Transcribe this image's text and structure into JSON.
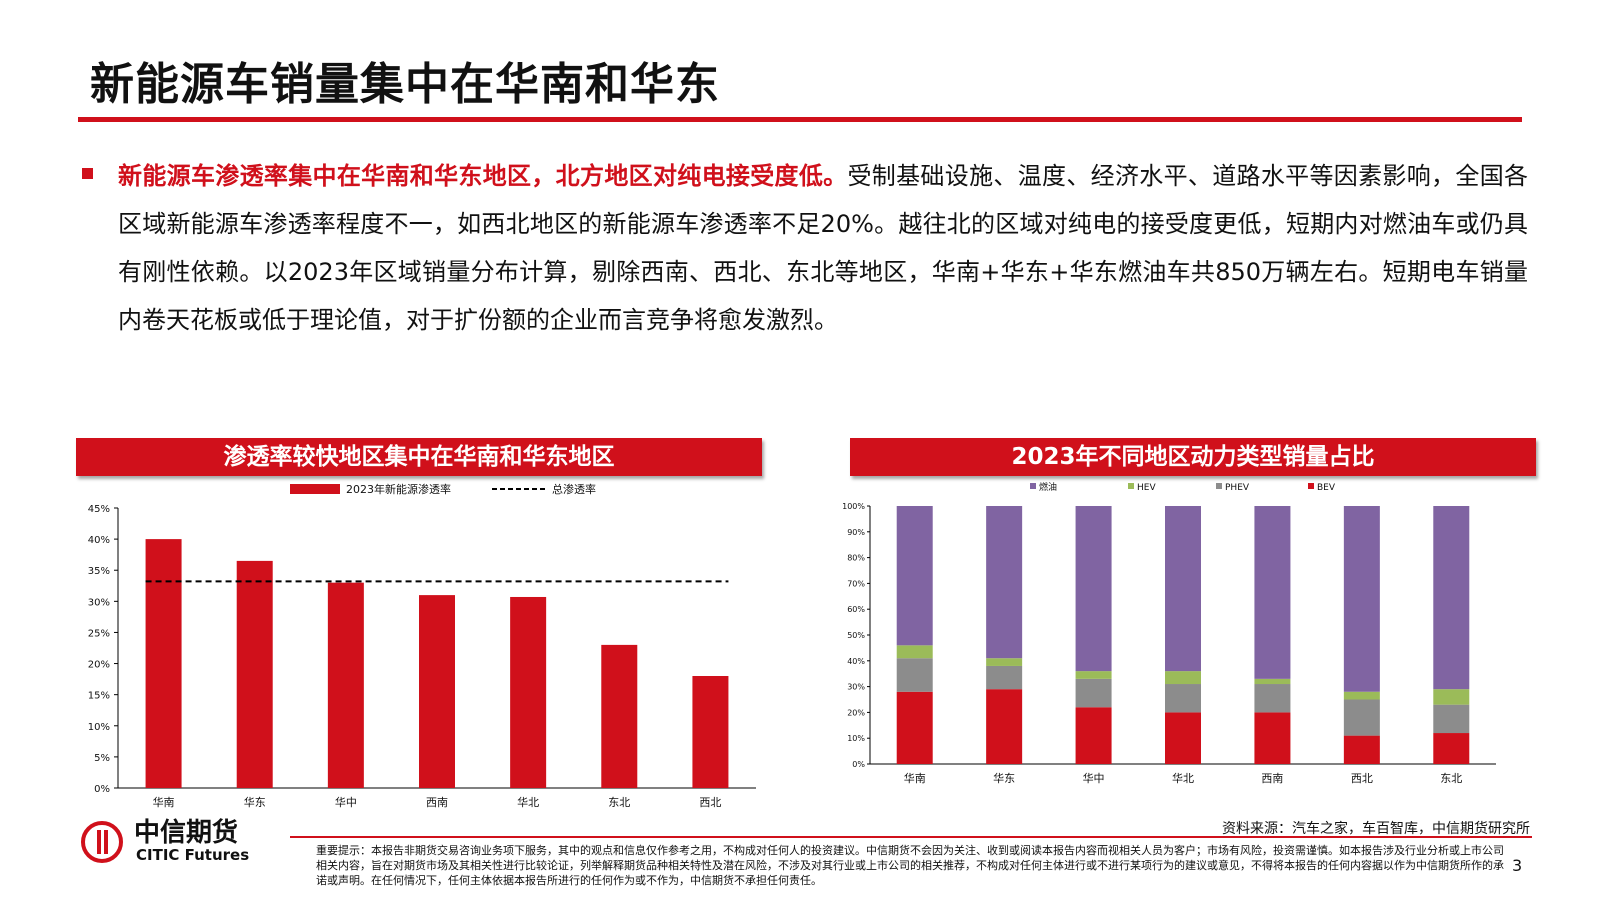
{
  "slide": {
    "title": "新能源车销量集中在华南和华东",
    "para_highlight": "新能源车渗透率集中在华南和华东地区，北方地区对纯电接受度低。",
    "para_rest": "受制基础设施、温度、经济水平、道路水平等因素影响，全国各区域新能源车渗透率程度不一，如西北地区的新能源车渗透率不足20%。越往北的区域对纯电的接受度更低，短期内对燃油车或仍具有刚性依赖。以2023年区域销量分布计算，剔除西南、西北、东北等地区，华南+华东+华东燃油车共850万辆左右。短期电车销量内卷天花板或低于理论值，对于扩份额的企业而言竞争将愈发激烈。",
    "source": "资料来源：汽车之家，车百智库，中信期货研究所",
    "disclaimer": "重要提示：本报告非期货交易咨询业务项下服务，其中的观点和信息仅作参考之用，不构成对任何人的投资建议。中信期货不会因为关注、收到或阅读本报告内容而视相关人员为客户；市场有风险，投资需谨慎。如本报告涉及行业分析或上市公司相关内容，旨在对期货市场及其相关性进行比较论证，列举解释期货品种相关特性及潜在风险，不涉及对其行业或上市公司的相关推荐，不构成对任何主体进行或不进行某项行为的建议或意见，不得将本报告的任何内容据以作为中信期货所作的承诺或声明。在任何情况下，任何主体依据本报告所进行的任何作为或不作为，中信期货不承担任何责任。",
    "page_number": "3",
    "logo_cn": "中信期货",
    "logo_en": "CITIC Futures"
  },
  "colors": {
    "accent": "#d0101b",
    "purple": "#8064a2",
    "green": "#9bbb59",
    "gray": "#8c8c8c"
  },
  "chart_data": [
    {
      "type": "bar",
      "title": "渗透率较快地区集中在华南和华东地区",
      "categories": [
        "华南",
        "华东",
        "华中",
        "西南",
        "华北",
        "东北",
        "西北"
      ],
      "series": [
        {
          "name": "2023年新能源渗透率",
          "values": [
            40,
            36.5,
            33,
            31,
            30.7,
            23,
            18
          ]
        }
      ],
      "reference_line": {
        "name": "总渗透率",
        "value": 33.2,
        "style": "dashed"
      },
      "yticks": [
        "0%",
        "5%",
        "10%",
        "15%",
        "20%",
        "25%",
        "30%",
        "35%",
        "40%",
        "45%"
      ],
      "ylim": [
        0,
        45
      ],
      "legend": "top"
    },
    {
      "type": "bar",
      "stacked": true,
      "title": "2023年不同地区动力类型销量占比",
      "categories": [
        "华南",
        "华东",
        "华中",
        "华北",
        "西南",
        "西北",
        "东北"
      ],
      "legend_order": [
        "燃油",
        "HEV",
        "PHEV",
        "BEV"
      ],
      "series": [
        {
          "name": "BEV",
          "values": [
            28,
            29,
            22,
            20,
            20,
            11,
            12
          ]
        },
        {
          "name": "PHEV",
          "values": [
            13,
            9,
            11,
            11,
            11,
            14,
            11
          ]
        },
        {
          "name": "HEV",
          "values": [
            5,
            3,
            3,
            5,
            2,
            3,
            6
          ]
        },
        {
          "name": "燃油",
          "values": [
            54,
            59,
            64,
            64,
            67,
            72,
            71
          ]
        }
      ],
      "yticks": [
        "0%",
        "10%",
        "20%",
        "30%",
        "40%",
        "50%",
        "60%",
        "70%",
        "80%",
        "90%",
        "100%"
      ],
      "ylim": [
        0,
        100
      ],
      "legend": "top"
    }
  ]
}
